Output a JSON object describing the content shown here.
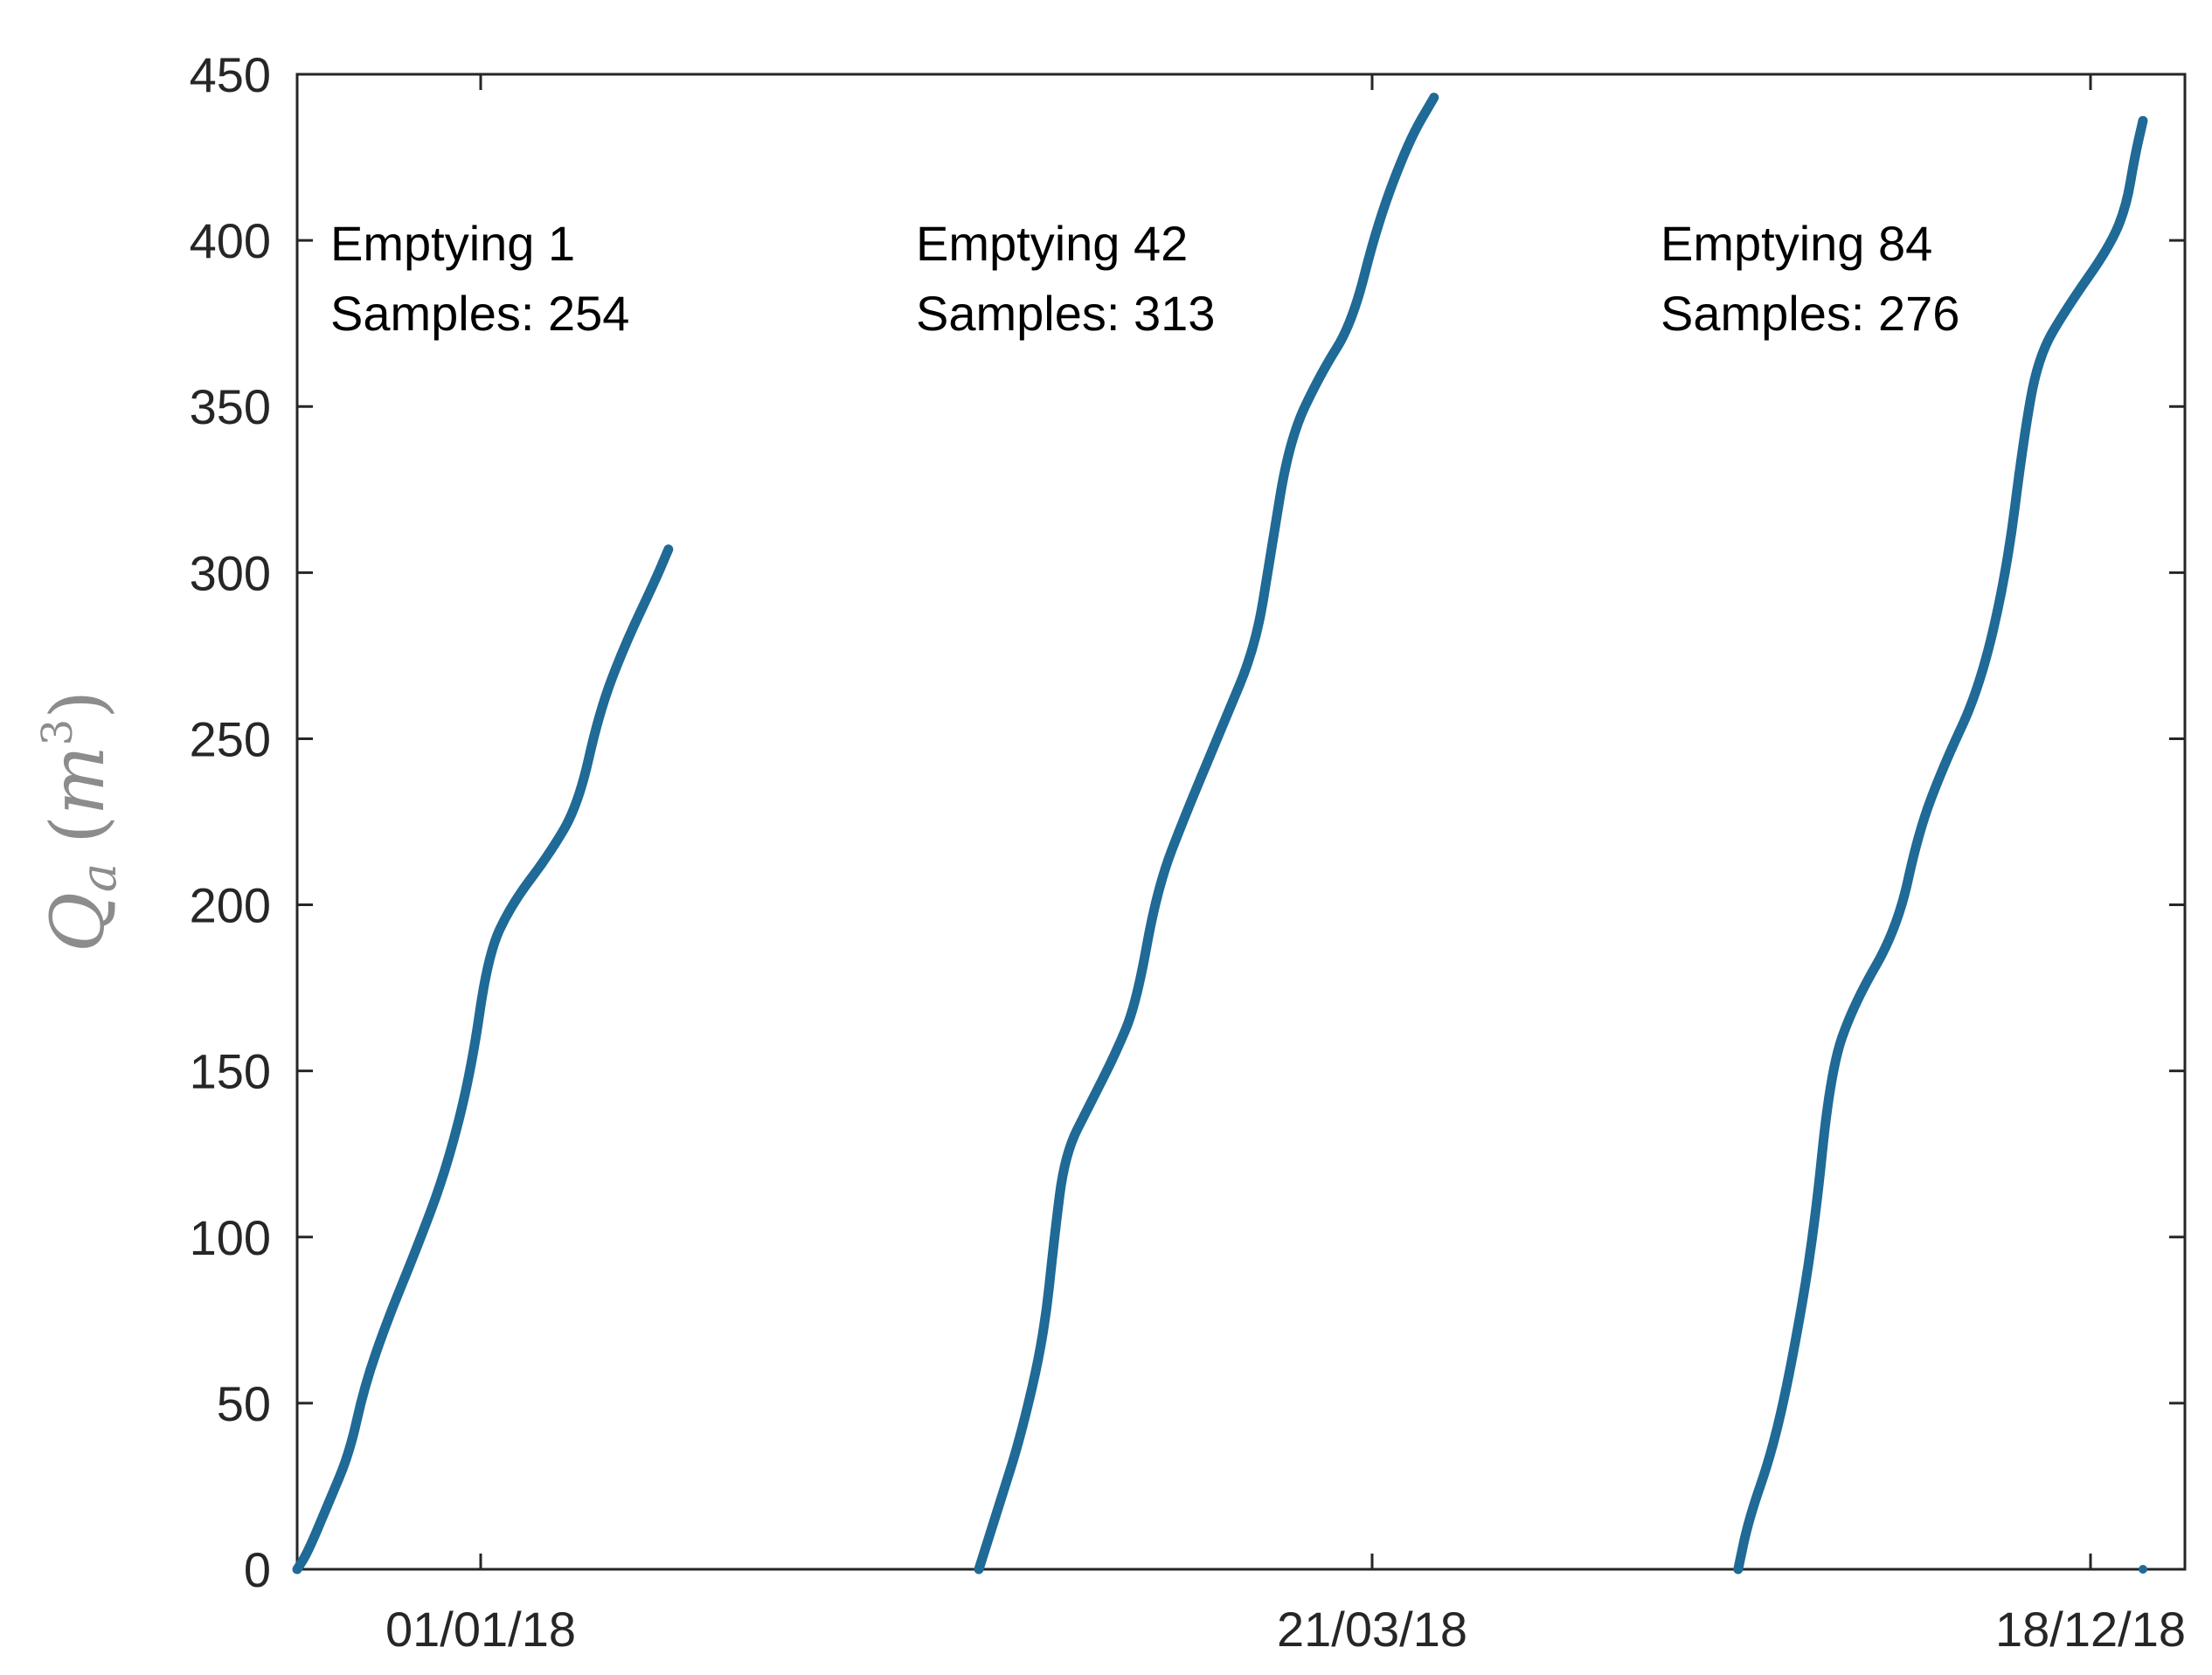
{
  "chart_data": {
    "type": "line",
    "title": "",
    "xlabel": "",
    "ylabel": {
      "symbol": "Q",
      "subscript": "a",
      "open": "(",
      "unit": "m",
      "superscript": "3",
      "close": ")"
    },
    "ylim": [
      0,
      450
    ],
    "y_ticks": [
      0,
      50,
      100,
      150,
      200,
      250,
      300,
      350,
      400,
      450
    ],
    "x_tick_labels": [
      "01/01/18",
      "21/03/18",
      "18/12/18"
    ],
    "grid": false,
    "line_color": "#1f6a96",
    "series": [
      {
        "annotation": [
          "Emptying 1",
          "Samples: 254"
        ],
        "points": [
          [
            0.0,
            0
          ],
          [
            0.5,
            5
          ],
          [
            1.5,
            20
          ],
          [
            2.5,
            35
          ],
          [
            3.2,
            55
          ],
          [
            4.3,
            75
          ],
          [
            5.6,
            95
          ],
          [
            7.1,
            120
          ],
          [
            8.3,
            150
          ],
          [
            9.1,
            185
          ],
          [
            10.2,
            200
          ],
          [
            12.0,
            215
          ],
          [
            13.4,
            230
          ],
          [
            14.4,
            258
          ],
          [
            15.6,
            278
          ],
          [
            17.1,
            298
          ],
          [
            17.7,
            307
          ]
        ]
      },
      {
        "annotation": [
          "Emptying 42",
          "Samples: 313"
        ],
        "points": [
          [
            32.5,
            0
          ],
          [
            33.5,
            20
          ],
          [
            34.5,
            40
          ],
          [
            35.6,
            70
          ],
          [
            36.1,
            100
          ],
          [
            36.6,
            125
          ],
          [
            37.8,
            140
          ],
          [
            39.0,
            155
          ],
          [
            40.0,
            170
          ],
          [
            41.0,
            205
          ],
          [
            42.4,
            228
          ],
          [
            44.2,
            255
          ],
          [
            45.7,
            278
          ],
          [
            46.4,
            305
          ],
          [
            47.3,
            340
          ],
          [
            48.8,
            360
          ],
          [
            50.3,
            375
          ],
          [
            51.5,
            405
          ],
          [
            53.0,
            430
          ],
          [
            54.2,
            443
          ]
        ]
      },
      {
        "annotation": [
          "Emptying 84",
          "Samples: 276"
        ],
        "points": [
          [
            68.7,
            0
          ],
          [
            69.2,
            15
          ],
          [
            70.3,
            35
          ],
          [
            71.2,
            60
          ],
          [
            72.3,
            100
          ],
          [
            73.1,
            150
          ],
          [
            74.2,
            170
          ],
          [
            76.3,
            193
          ],
          [
            77.3,
            222
          ],
          [
            78.5,
            242
          ],
          [
            80.2,
            265
          ],
          [
            81.5,
            300
          ],
          [
            82.3,
            340
          ],
          [
            83.0,
            365
          ],
          [
            84.4,
            380
          ],
          [
            86.4,
            398
          ],
          [
            87.2,
            410
          ],
          [
            87.6,
            425
          ],
          [
            88.0,
            436
          ]
        ]
      }
    ],
    "stray_points": [
      [
        88.0,
        0
      ]
    ]
  }
}
